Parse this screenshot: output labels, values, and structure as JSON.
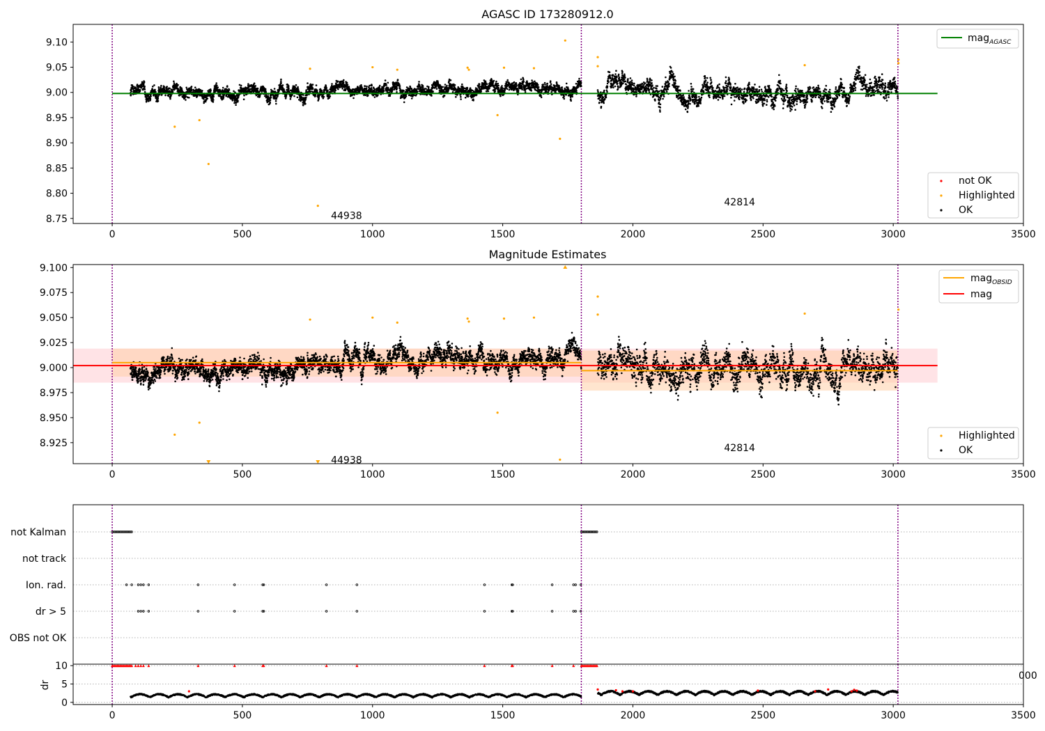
{
  "chart_data": [
    {
      "type": "scatter",
      "title": "AGASC ID 173280912.0",
      "xlim": [
        -150,
        3500
      ],
      "ylim": [
        8.74,
        9.135
      ],
      "xticks": [
        "0",
        "500",
        "1000",
        "1500",
        "2000",
        "2500",
        "3000",
        "3500"
      ],
      "yticks": [
        "9.10",
        "9.05",
        "9.00",
        "8.95",
        "8.90",
        "8.85",
        "8.80",
        "8.75"
      ],
      "obs_boundaries": [
        0,
        1802,
        3018
      ],
      "obsid_labels": [
        {
          "text": "44938",
          "x": 900,
          "y": 8.756
        },
        {
          "text": "42814",
          "x": 2410,
          "y": 8.783
        }
      ],
      "lines": [
        {
          "name": "mag_AGASC",
          "color": "#008000",
          "x": [
            0,
            3170
          ],
          "y": [
            8.998,
            8.998
          ]
        }
      ],
      "legends": [
        {
          "position": "top-right",
          "items": [
            {
              "label": "mag",
              "sub": "AGASC",
              "kind": "line",
              "color": "#008000"
            }
          ]
        },
        {
          "position": "lower-right",
          "items": [
            {
              "label": "not OK",
              "kind": "marker",
              "color": "#ff0000"
            },
            {
              "label": "Highlighted",
              "kind": "marker",
              "color": "#ffa500"
            },
            {
              "label": "OK",
              "kind": "marker",
              "color": "#000000"
            }
          ]
        }
      ],
      "highlighted_points": {
        "color": "#ffa500",
        "x": [
          240,
          335,
          370,
          760,
          790,
          1000,
          1095,
          1365,
          1370,
          1480,
          1505,
          1620,
          1720,
          1740,
          1865,
          1865,
          2660,
          3020,
          3020
        ],
        "y": [
          8.932,
          8.945,
          8.858,
          9.047,
          8.775,
          9.05,
          9.045,
          9.049,
          9.045,
          8.955,
          9.049,
          9.048,
          8.908,
          9.103,
          9.07,
          9.052,
          9.054,
          9.058,
          9.065
        ]
      },
      "ok_points": {
        "color": "#000000",
        "segments": [
          {
            "x0": 70,
            "x1": 750,
            "base": 9.0,
            "slope": 0.0,
            "spread": 0.022,
            "density": 2.2
          },
          {
            "x0": 750,
            "x1": 1802,
            "base": 9.008,
            "slope": 0.0,
            "spread": 0.022,
            "density": 2.0
          },
          {
            "x0": 1865,
            "x1": 3018,
            "base": 9.0,
            "slope": 0.0,
            "spread": 0.035,
            "density": 1.8
          }
        ]
      }
    },
    {
      "type": "scatter",
      "title": "Magnitude Estimates",
      "xlim": [
        -150,
        3500
      ],
      "ylim": [
        8.904,
        9.103
      ],
      "xticks": [
        "0",
        "500",
        "1000",
        "1500",
        "2000",
        "2500",
        "3000",
        "3500"
      ],
      "yticks": [
        "9.100",
        "9.075",
        "9.050",
        "9.025",
        "9.000",
        "8.975",
        "8.950",
        "8.925"
      ],
      "obs_boundaries": [
        0,
        1802,
        3018
      ],
      "obsid_labels": [
        {
          "text": "44938",
          "x": 900,
          "y": 8.908
        },
        {
          "text": "42814",
          "x": 2410,
          "y": 8.92
        }
      ],
      "lines": [
        {
          "name": "mag",
          "color": "#ff0000",
          "x": [
            -150,
            3170
          ],
          "y": [
            9.002,
            9.002
          ]
        },
        {
          "name": "mag_OBSID_1",
          "color": "#ffa500",
          "x": [
            0,
            1802
          ],
          "y": [
            9.005,
            9.005
          ]
        },
        {
          "name": "mag_OBSID_2",
          "color": "#ffa500",
          "x": [
            1802,
            3018
          ],
          "y": [
            8.997,
            8.997
          ]
        }
      ],
      "bands": [
        {
          "color": "#ffc0c8",
          "x0": -150,
          "x1": 3170,
          "y0": 8.985,
          "y1": 9.019
        },
        {
          "color": "#ffd0a8",
          "x0": 0,
          "x1": 1802,
          "y0": 8.991,
          "y1": 9.019
        },
        {
          "color": "#ffd0a8",
          "x0": 1802,
          "x1": 3018,
          "y0": 8.977,
          "y1": 9.017
        }
      ],
      "legends": [
        {
          "position": "top-right",
          "items": [
            {
              "label": "mag",
              "sub": "OBSID",
              "kind": "line",
              "color": "#ffa500"
            },
            {
              "label": "mag",
              "kind": "line",
              "color": "#ff0000"
            }
          ]
        },
        {
          "position": "lower-right",
          "items": [
            {
              "label": "Highlighted",
              "kind": "marker",
              "color": "#ffa500"
            },
            {
              "label": "OK",
              "kind": "marker",
              "color": "#000000"
            }
          ]
        }
      ],
      "highlighted_points": {
        "color": "#ffa500",
        "x": [
          240,
          335,
          760,
          1000,
          1095,
          1365,
          1370,
          1480,
          1505,
          1620,
          1720,
          1865,
          1865,
          2660,
          3020
        ],
        "y": [
          8.933,
          8.945,
          9.048,
          9.05,
          9.045,
          9.049,
          9.046,
          8.955,
          9.049,
          9.05,
          8.908,
          9.071,
          9.053,
          9.054,
          9.058
        ]
      },
      "offscale_markers": {
        "color": "#ffa500",
        "x": [
          370,
          790,
          1740
        ],
        "edge": [
          "bottom",
          "bottom",
          "top"
        ]
      },
      "ok_points": {
        "color": "#000000",
        "segments": [
          {
            "x0": 70,
            "x1": 750,
            "base": 8.998,
            "slope": 0.0,
            "spread": 0.018,
            "density": 2.2
          },
          {
            "x0": 750,
            "x1": 1802,
            "base": 9.008,
            "slope": 0.0,
            "spread": 0.02,
            "density": 2.0
          },
          {
            "x0": 1865,
            "x1": 3018,
            "base": 8.998,
            "slope": 0.0,
            "spread": 0.03,
            "density": 1.8
          }
        ]
      }
    },
    {
      "type": "scatter",
      "title": "",
      "xlim": [
        -150,
        3500
      ],
      "flags": [
        "not Kalman",
        "not track",
        "Ion. rad.",
        "dr > 5",
        "OBS not OK"
      ],
      "flag_points": {
        "not Kalman": [
          0,
          5,
          10,
          15,
          20,
          25,
          30,
          35,
          40,
          45,
          50,
          55,
          60,
          65,
          70,
          75,
          1802,
          1807,
          1812,
          1817,
          1822,
          1827,
          1832,
          1837,
          1842,
          1847,
          1852,
          1857,
          1862
        ],
        "not track": [],
        "Ion. rad.": [
          55,
          75,
          100,
          110,
          120,
          140,
          330,
          470,
          578,
          582,
          823,
          940,
          1430,
          1535,
          1538,
          1690,
          1772,
          1780,
          1800
        ],
        "dr > 5": [
          100,
          110,
          120,
          140,
          330,
          470,
          578,
          582,
          823,
          940,
          1430,
          1535,
          1538,
          1690,
          1772,
          1780,
          1800
        ],
        "OBS not OK": []
      },
      "obs_boundaries": [
        0,
        1802,
        3018
      ]
    },
    {
      "type": "scatter",
      "title": "",
      "ylabel": "dr",
      "xlim": [
        -150,
        3500
      ],
      "ylim": [
        -0.6,
        10.4
      ],
      "xticks": [
        "0",
        "500",
        "1000",
        "1500",
        "2000",
        "2500",
        "3000",
        "3500"
      ],
      "yticks": [
        "10",
        "5",
        "0"
      ],
      "clipped_tick": "000",
      "red_points_at_10": [
        0,
        5,
        10,
        15,
        20,
        25,
        30,
        35,
        40,
        45,
        50,
        55,
        60,
        65,
        70,
        75,
        90,
        100,
        110,
        120,
        140,
        330,
        470,
        578,
        582,
        823,
        940,
        1430,
        1535,
        1538,
        1690,
        1772,
        1802,
        1807,
        1812,
        1817,
        1822,
        1827,
        1832,
        1837,
        1842,
        1847,
        1852,
        1857,
        1862
      ],
      "red_low_points": {
        "x": [
          295,
          1865,
          1935,
          1960,
          2000,
          2480,
          2700,
          2750,
          2840,
          2850,
          2860
        ],
        "y": [
          3.0,
          3.5,
          3.3,
          3.0,
          3.0,
          3.2,
          3.0,
          3.5,
          3.0,
          3.4,
          3.2
        ]
      },
      "black_segments": [
        {
          "x0": 70,
          "x1": 1802,
          "base": 1.2,
          "spread": 1.0
        },
        {
          "x0": 1865,
          "x1": 3018,
          "base": 1.8,
          "spread": 1.2
        }
      ],
      "obs_boundaries": [
        0,
        1802,
        3018
      ]
    }
  ]
}
